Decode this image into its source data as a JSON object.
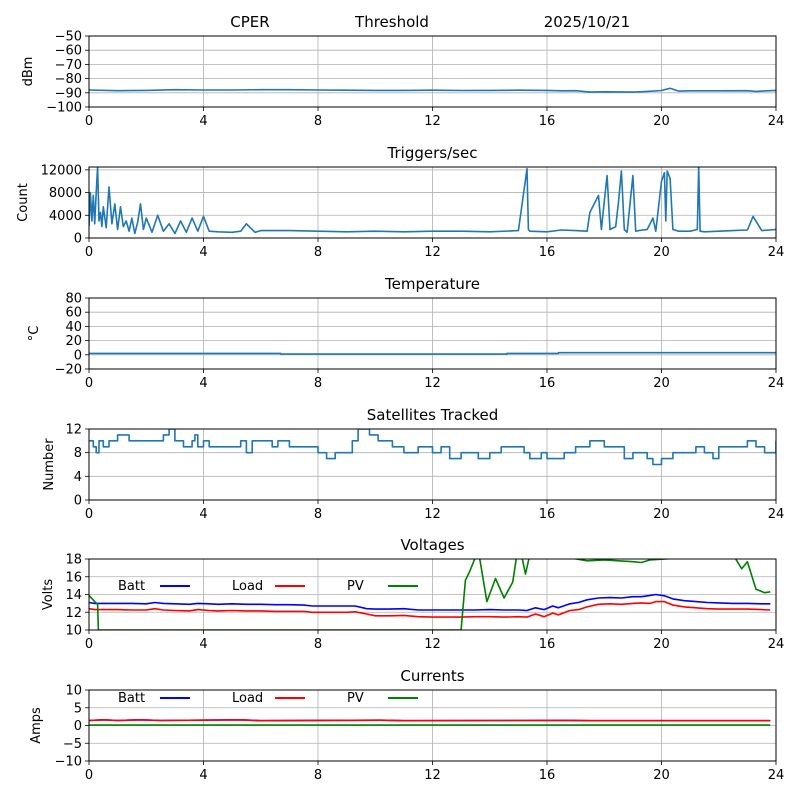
{
  "header": {
    "site": "CPER",
    "mode": "Threshold",
    "date": "2025/10/21"
  },
  "chart_data": [
    {
      "type": "line",
      "title": "",
      "xlabel": "",
      "ylabel": "dBm",
      "xlim": [
        0,
        24
      ],
      "ylim": [
        -100,
        -50
      ],
      "xticks": [
        0,
        4,
        8,
        12,
        16,
        20,
        24
      ],
      "yticks": [
        -100,
        -90,
        -80,
        -70,
        -60,
        -50
      ],
      "ytick_labels": [
        "−100",
        "−90",
        "−80",
        "−70",
        "−60",
        "−50"
      ],
      "grid": true,
      "series": [
        {
          "name": "Threshold",
          "color": "#1f77b4",
          "x": [
            0,
            1,
            2,
            3,
            4,
            5,
            6,
            7,
            8,
            9,
            10,
            11,
            12,
            13,
            14,
            15,
            16,
            16.5,
            17,
            17.5,
            18,
            18.5,
            19,
            19.5,
            20,
            20.3,
            20.6,
            21,
            22,
            23,
            23.3,
            24
          ],
          "y": [
            -88,
            -88.5,
            -88.3,
            -87.8,
            -88,
            -88,
            -87.8,
            -87.8,
            -88,
            -88.2,
            -88.3,
            -88.3,
            -88.2,
            -88.4,
            -88.3,
            -88.2,
            -88.3,
            -88.6,
            -88.5,
            -89.5,
            -89.3,
            -89.4,
            -89.5,
            -89.0,
            -88.4,
            -86.8,
            -88.8,
            -88.6,
            -88.6,
            -88.5,
            -89.0,
            -88.3
          ]
        }
      ]
    },
    {
      "type": "line",
      "title": "Triggers/sec",
      "xlabel": "",
      "ylabel": "Count",
      "xlim": [
        0,
        24
      ],
      "ylim": [
        0,
        12500
      ],
      "xticks": [
        0,
        4,
        8,
        12,
        16,
        20,
        24
      ],
      "yticks": [
        0,
        4000,
        8000,
        12000
      ],
      "grid": true,
      "series": [
        {
          "name": "Triggers",
          "color": "#1f77b4",
          "x": [
            0,
            0.05,
            0.1,
            0.15,
            0.2,
            0.25,
            0.3,
            0.35,
            0.4,
            0.45,
            0.5,
            0.6,
            0.7,
            0.8,
            0.9,
            1.0,
            1.1,
            1.2,
            1.3,
            1.4,
            1.5,
            1.6,
            1.7,
            1.8,
            1.9,
            2.0,
            2.2,
            2.4,
            2.6,
            2.8,
            3.0,
            3.2,
            3.4,
            3.6,
            3.8,
            4.0,
            4.2,
            4.5,
            5.0,
            5.3,
            5.5,
            5.8,
            6.0,
            7.0,
            8.0,
            9.0,
            10.0,
            11.0,
            12.0,
            13.0,
            14.0,
            15.0,
            15.3,
            15.35,
            15.4,
            16.0,
            16.5,
            17.0,
            17.4,
            17.5,
            17.8,
            17.9,
            18.0,
            18.1,
            18.2,
            18.4,
            18.5,
            18.6,
            18.7,
            18.8,
            19.0,
            19.1,
            19.2,
            19.5,
            19.7,
            19.8,
            20.0,
            20.1,
            20.15,
            20.2,
            20.3,
            20.4,
            20.6,
            21.0,
            21.25,
            21.3,
            21.35,
            21.5,
            22.0,
            22.5,
            23.0,
            23.2,
            23.5,
            24.0
          ],
          "y": [
            2000,
            8000,
            3000,
            7500,
            2500,
            8000,
            12500,
            3000,
            4500,
            2000,
            5500,
            1800,
            9000,
            2500,
            6000,
            1500,
            5500,
            2000,
            3000,
            1200,
            3500,
            800,
            2800,
            6000,
            1500,
            3500,
            1000,
            4000,
            1200,
            2500,
            800,
            3000,
            1000,
            3500,
            1200,
            3800,
            1200,
            1100,
            1000,
            1200,
            2500,
            1000,
            1300,
            1300,
            1200,
            1100,
            1200,
            1100,
            1200,
            1200,
            1100,
            1300,
            12200,
            1500,
            1200,
            1100,
            1400,
            1300,
            1200,
            4500,
            7500,
            1500,
            6500,
            11000,
            1500,
            2000,
            6500,
            11800,
            1500,
            1000,
            11000,
            1200,
            1300,
            1500,
            3500,
            1200,
            10000,
            11500,
            3000,
            11800,
            10500,
            1500,
            1200,
            1200,
            1500,
            12500,
            1200,
            1100,
            1200,
            1300,
            1400,
            3800,
            1300,
            1500
          ]
        }
      ]
    },
    {
      "type": "line",
      "title": "Temperature",
      "xlabel": "",
      "ylabel": "°C",
      "xlim": [
        0,
        24
      ],
      "ylim": [
        -20,
        80
      ],
      "xticks": [
        0,
        4,
        8,
        12,
        16,
        20,
        24
      ],
      "yticks": [
        -20,
        0,
        20,
        40,
        60,
        80
      ],
      "ytick_labels": [
        "−20",
        "0",
        "20",
        "40",
        "60",
        "80"
      ],
      "grid": true,
      "series": [
        {
          "name": "Temperature",
          "color": "#1f77b4",
          "x": [
            0,
            6.7,
            6.7,
            14.6,
            14.6,
            16.4,
            16.4,
            24
          ],
          "y": [
            2,
            2,
            1,
            1,
            2,
            2,
            3,
            3
          ]
        }
      ]
    },
    {
      "type": "line",
      "title": "Satellites Tracked",
      "xlabel": "",
      "ylabel": "Number",
      "xlim": [
        0,
        24
      ],
      "ylim": [
        0,
        12
      ],
      "xticks": [
        0,
        4,
        8,
        12,
        16,
        20,
        24
      ],
      "yticks": [
        0,
        4,
        8,
        12
      ],
      "grid": true,
      "step": true,
      "series": [
        {
          "name": "Satellites",
          "color": "#1f77b4",
          "x": [
            0,
            0.15,
            0.25,
            0.35,
            0.5,
            0.7,
            1.0,
            1.4,
            2.4,
            2.6,
            2.8,
            3.0,
            3.3,
            3.6,
            3.7,
            3.8,
            4.0,
            4.2,
            4.6,
            5.0,
            5.3,
            5.5,
            5.7,
            6.0,
            6.4,
            6.6,
            7.0,
            7.5,
            8.0,
            8.3,
            8.6,
            8.9,
            9.2,
            9.4,
            9.8,
            10.1,
            10.6,
            11.0,
            11.5,
            11.8,
            12.0,
            12.3,
            12.6,
            13.0,
            13.6,
            14.0,
            14.4,
            14.8,
            15.2,
            15.4,
            15.8,
            16.0,
            16.6,
            17.0,
            17.5,
            18.0,
            18.4,
            18.7,
            19.0,
            19.5,
            19.7,
            20.0,
            20.4,
            20.8,
            21.2,
            21.5,
            21.8,
            22.0,
            22.6,
            23.0,
            23.3,
            23.6,
            24.0
          ],
          "y": [
            10,
            9,
            8,
            10,
            9,
            10,
            11,
            10,
            10,
            11,
            12,
            10,
            9,
            10,
            11,
            9,
            10,
            9,
            9,
            9,
            10,
            8,
            10,
            10,
            9,
            10,
            9,
            9,
            8,
            7,
            8,
            8,
            10,
            12,
            11,
            10,
            9,
            8,
            9,
            9,
            8,
            9,
            7,
            8,
            7,
            8,
            9,
            9,
            8,
            7,
            8,
            7,
            8,
            9,
            10,
            9,
            9,
            7,
            8,
            7,
            6,
            7,
            8,
            8,
            9,
            8,
            7,
            9,
            9,
            10,
            9,
            8,
            10
          ]
        }
      ]
    },
    {
      "type": "line",
      "title": "Voltages",
      "xlabel": "",
      "ylabel": "Volts",
      "xlim": [
        0,
        24
      ],
      "ylim": [
        10,
        18
      ],
      "xticks": [
        0,
        4,
        8,
        12,
        16,
        20,
        24
      ],
      "yticks": [
        10,
        12,
        14,
        16,
        18
      ],
      "grid": true,
      "legend": "top-left, inline",
      "series": [
        {
          "name": "Batt",
          "color": "#0000ff",
          "x": [
            0,
            0.2,
            0.5,
            1,
            1.5,
            2,
            2.3,
            2.6,
            3,
            3.5,
            3.8,
            4.2,
            4.5,
            5,
            5.5,
            6,
            6.5,
            7,
            7.5,
            7.8,
            8.2,
            8.6,
            9,
            9.3,
            9.7,
            10,
            10.5,
            11,
            11.5,
            12,
            12.5,
            13,
            13.5,
            14,
            14.5,
            15,
            15.3,
            15.6,
            15.9,
            16.2,
            16.4,
            16.8,
            17.1,
            17.4,
            17.8,
            18.2,
            18.6,
            19.0,
            19.3,
            19.6,
            19.8,
            20.1,
            20.4,
            20.8,
            21.2,
            21.6,
            22,
            22.5,
            23,
            23.5,
            23.8
          ],
          "y": [
            13.1,
            13.0,
            13.0,
            13.0,
            13.0,
            12.95,
            13.1,
            13.0,
            12.95,
            12.9,
            13.0,
            12.95,
            12.9,
            12.95,
            12.9,
            12.9,
            12.85,
            12.85,
            12.8,
            12.7,
            12.7,
            12.7,
            12.7,
            12.7,
            12.4,
            12.35,
            12.35,
            12.4,
            12.25,
            12.25,
            12.25,
            12.25,
            12.25,
            12.3,
            12.25,
            12.25,
            12.2,
            12.5,
            12.3,
            12.7,
            12.5,
            12.95,
            13.1,
            13.4,
            13.6,
            13.65,
            13.6,
            13.75,
            13.75,
            13.9,
            14.0,
            13.85,
            13.5,
            13.3,
            13.2,
            13.1,
            13.05,
            13.0,
            13.0,
            12.95,
            12.95
          ]
        },
        {
          "name": "Load",
          "color": "#ff0000",
          "x": [
            0,
            0.2,
            0.5,
            1,
            1.5,
            2,
            2.3,
            2.6,
            3,
            3.5,
            3.8,
            4.2,
            4.5,
            5,
            5.5,
            6,
            6.5,
            7,
            7.5,
            7.8,
            8.2,
            8.6,
            9,
            9.3,
            9.7,
            10,
            10.5,
            11,
            11.5,
            12,
            12.5,
            13,
            13.5,
            14,
            14.5,
            15,
            15.3,
            15.6,
            15.9,
            16.2,
            16.4,
            16.8,
            17.1,
            17.4,
            17.8,
            18.2,
            18.6,
            19.0,
            19.3,
            19.6,
            19.8,
            20.1,
            20.4,
            20.8,
            21.2,
            21.6,
            22,
            22.5,
            23,
            23.5,
            23.8
          ],
          "y": [
            12.4,
            12.3,
            12.3,
            12.3,
            12.25,
            12.25,
            12.4,
            12.25,
            12.2,
            12.15,
            12.3,
            12.2,
            12.15,
            12.2,
            12.15,
            12.15,
            12.1,
            12.1,
            12.1,
            12.0,
            12.0,
            12.0,
            12.0,
            12.05,
            11.8,
            11.6,
            11.6,
            11.65,
            11.5,
            11.45,
            11.45,
            11.45,
            11.5,
            11.5,
            11.45,
            11.5,
            11.45,
            11.8,
            11.5,
            11.9,
            11.7,
            12.2,
            12.3,
            12.6,
            12.9,
            12.95,
            12.9,
            13.0,
            13.05,
            13.0,
            13.2,
            13.2,
            12.8,
            12.6,
            12.5,
            12.4,
            12.35,
            12.35,
            12.35,
            12.3,
            12.25
          ]
        },
        {
          "name": "PV",
          "color": "#008000",
          "x": [
            0,
            0.2,
            0.3,
            0.33,
            13.0,
            13.15,
            13.3,
            13.6,
            13.9,
            14.2,
            14.5,
            14.8,
            14.95,
            15.1,
            15.25,
            15.4,
            15.6,
            17.4,
            18,
            18.5,
            19,
            19.3,
            19.6,
            22.5,
            22.8,
            23.0,
            23.3,
            23.6,
            23.8
          ],
          "y": [
            13.9,
            13.2,
            12.9,
            10.0,
            10.0,
            15.6,
            16.6,
            19.0,
            13.2,
            15.8,
            13.6,
            15.4,
            18.5,
            18.6,
            16.3,
            18.5,
            18.8,
            17.8,
            17.9,
            17.8,
            17.7,
            17.6,
            17.9,
            18.5,
            16.9,
            17.7,
            14.6,
            14.2,
            14.3
          ]
        }
      ]
    },
    {
      "type": "line",
      "title": "Currents",
      "xlabel": "",
      "ylabel": "Amps",
      "xlim": [
        0,
        24
      ],
      "ylim": [
        -10,
        10
      ],
      "xticks": [
        0,
        4,
        8,
        12,
        16,
        20,
        24
      ],
      "yticks": [
        -10,
        -5,
        0,
        5,
        10
      ],
      "ytick_labels": [
        "−10",
        "−5",
        "0",
        "5",
        "10"
      ],
      "grid": true,
      "legend": "top-left, inline",
      "series": [
        {
          "name": "Batt",
          "color": "#0000ff",
          "x": [
            0,
            0.5,
            1.0,
            1.8,
            2.5,
            5.3,
            6,
            10.2,
            11,
            16.8,
            17.5,
            23.8
          ],
          "y": [
            1.4,
            1.6,
            1.4,
            1.6,
            1.4,
            1.6,
            1.35,
            1.5,
            1.35,
            1.45,
            1.35,
            1.35
          ]
        },
        {
          "name": "Load",
          "color": "#ff0000",
          "x": [
            0,
            0.5,
            1.0,
            1.8,
            2.5,
            5.3,
            6,
            10.2,
            11,
            16.8,
            17.5,
            23.8
          ],
          "y": [
            1.4,
            1.6,
            1.4,
            1.6,
            1.4,
            1.6,
            1.35,
            1.5,
            1.35,
            1.45,
            1.35,
            1.35
          ]
        },
        {
          "name": "PV",
          "color": "#008000",
          "x": [
            0,
            23.8
          ],
          "y": [
            0.1,
            0.1
          ]
        }
      ]
    }
  ]
}
